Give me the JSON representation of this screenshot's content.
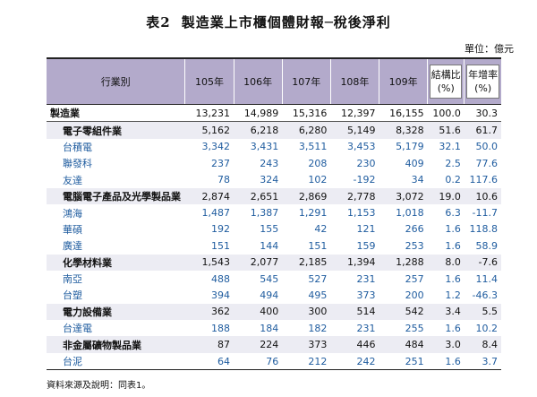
{
  "title": {
    "number": "表2",
    "text": "製造業上市櫃個體財報─稅後淨利"
  },
  "unit": "單位：億元",
  "note": "資料來源及說明：同表1。",
  "chart_data": {
    "type": "table",
    "headers": {
      "industry": "行業別",
      "years": [
        "105年",
        "106年",
        "107年",
        "108年",
        "109年"
      ],
      "share": [
        "結構比",
        "(%)"
      ],
      "growth": [
        "年增率",
        "(%)"
      ]
    },
    "rows": [
      {
        "level": 0,
        "name": "製造業",
        "values": [
          "13,231",
          "14,989",
          "15,316",
          "12,397",
          "16,155"
        ],
        "share": "100.0",
        "growth": "30.3"
      },
      {
        "level": 1,
        "name": "電子零組件業",
        "values": [
          "5,162",
          "6,218",
          "6,280",
          "5,149",
          "8,328"
        ],
        "share": "51.6",
        "growth": "61.7"
      },
      {
        "level": 2,
        "name": "台積電",
        "values": [
          "3,342",
          "3,431",
          "3,511",
          "3,453",
          "5,179"
        ],
        "share": "32.1",
        "growth": "50.0"
      },
      {
        "level": 2,
        "name": "聯發科",
        "values": [
          "237",
          "243",
          "208",
          "230",
          "409"
        ],
        "share": "2.5",
        "growth": "77.6"
      },
      {
        "level": 2,
        "name": "友達",
        "values": [
          "78",
          "324",
          "102",
          "-192",
          "34"
        ],
        "share": "0.2",
        "growth": "117.6"
      },
      {
        "level": 1,
        "name": "電腦電子產品及光學製品業",
        "values": [
          "2,874",
          "2,651",
          "2,869",
          "2,778",
          "3,072"
        ],
        "share": "19.0",
        "growth": "10.6"
      },
      {
        "level": 2,
        "name": "鴻海",
        "values": [
          "1,487",
          "1,387",
          "1,291",
          "1,153",
          "1,018"
        ],
        "share": "6.3",
        "growth": "-11.7"
      },
      {
        "level": 2,
        "name": "華碩",
        "values": [
          "192",
          "155",
          "42",
          "121",
          "266"
        ],
        "share": "1.6",
        "growth": "118.8"
      },
      {
        "level": 2,
        "name": "廣達",
        "values": [
          "151",
          "144",
          "151",
          "159",
          "253"
        ],
        "share": "1.6",
        "growth": "58.9"
      },
      {
        "level": 1,
        "name": "化學材料業",
        "values": [
          "1,543",
          "2,077",
          "2,185",
          "1,394",
          "1,288"
        ],
        "share": "8.0",
        "growth": "-7.6"
      },
      {
        "level": 2,
        "name": "南亞",
        "values": [
          "488",
          "545",
          "527",
          "231",
          "257"
        ],
        "share": "1.6",
        "growth": "11.4"
      },
      {
        "level": 2,
        "name": "台塑",
        "values": [
          "394",
          "494",
          "495",
          "373",
          "200"
        ],
        "share": "1.2",
        "growth": "-46.3"
      },
      {
        "level": 1,
        "name": "電力設備業",
        "values": [
          "362",
          "400",
          "300",
          "514",
          "542"
        ],
        "share": "3.4",
        "growth": "5.5"
      },
      {
        "level": 2,
        "name": "台達電",
        "values": [
          "188",
          "184",
          "182",
          "231",
          "255"
        ],
        "share": "1.6",
        "growth": "10.2"
      },
      {
        "level": 1,
        "name": "非金屬礦物製品業",
        "values": [
          "87",
          "224",
          "373",
          "446",
          "484"
        ],
        "share": "3.0",
        "growth": "8.4"
      },
      {
        "level": 2,
        "name": "台泥",
        "values": [
          "64",
          "76",
          "212",
          "242",
          "251"
        ],
        "share": "1.6",
        "growth": "3.7"
      }
    ]
  }
}
